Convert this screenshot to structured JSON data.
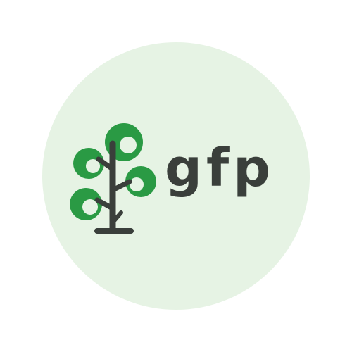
{
  "logo": {
    "wordmark": "gfp",
    "icon": "tree-icon"
  },
  "colors": {
    "page_background": "#ffffff",
    "badge_background": "#e6f3e4",
    "leaf_green": "#2a9a44",
    "trunk_dark": "#3a3f3b",
    "text_dark": "#3a3f3b"
  }
}
